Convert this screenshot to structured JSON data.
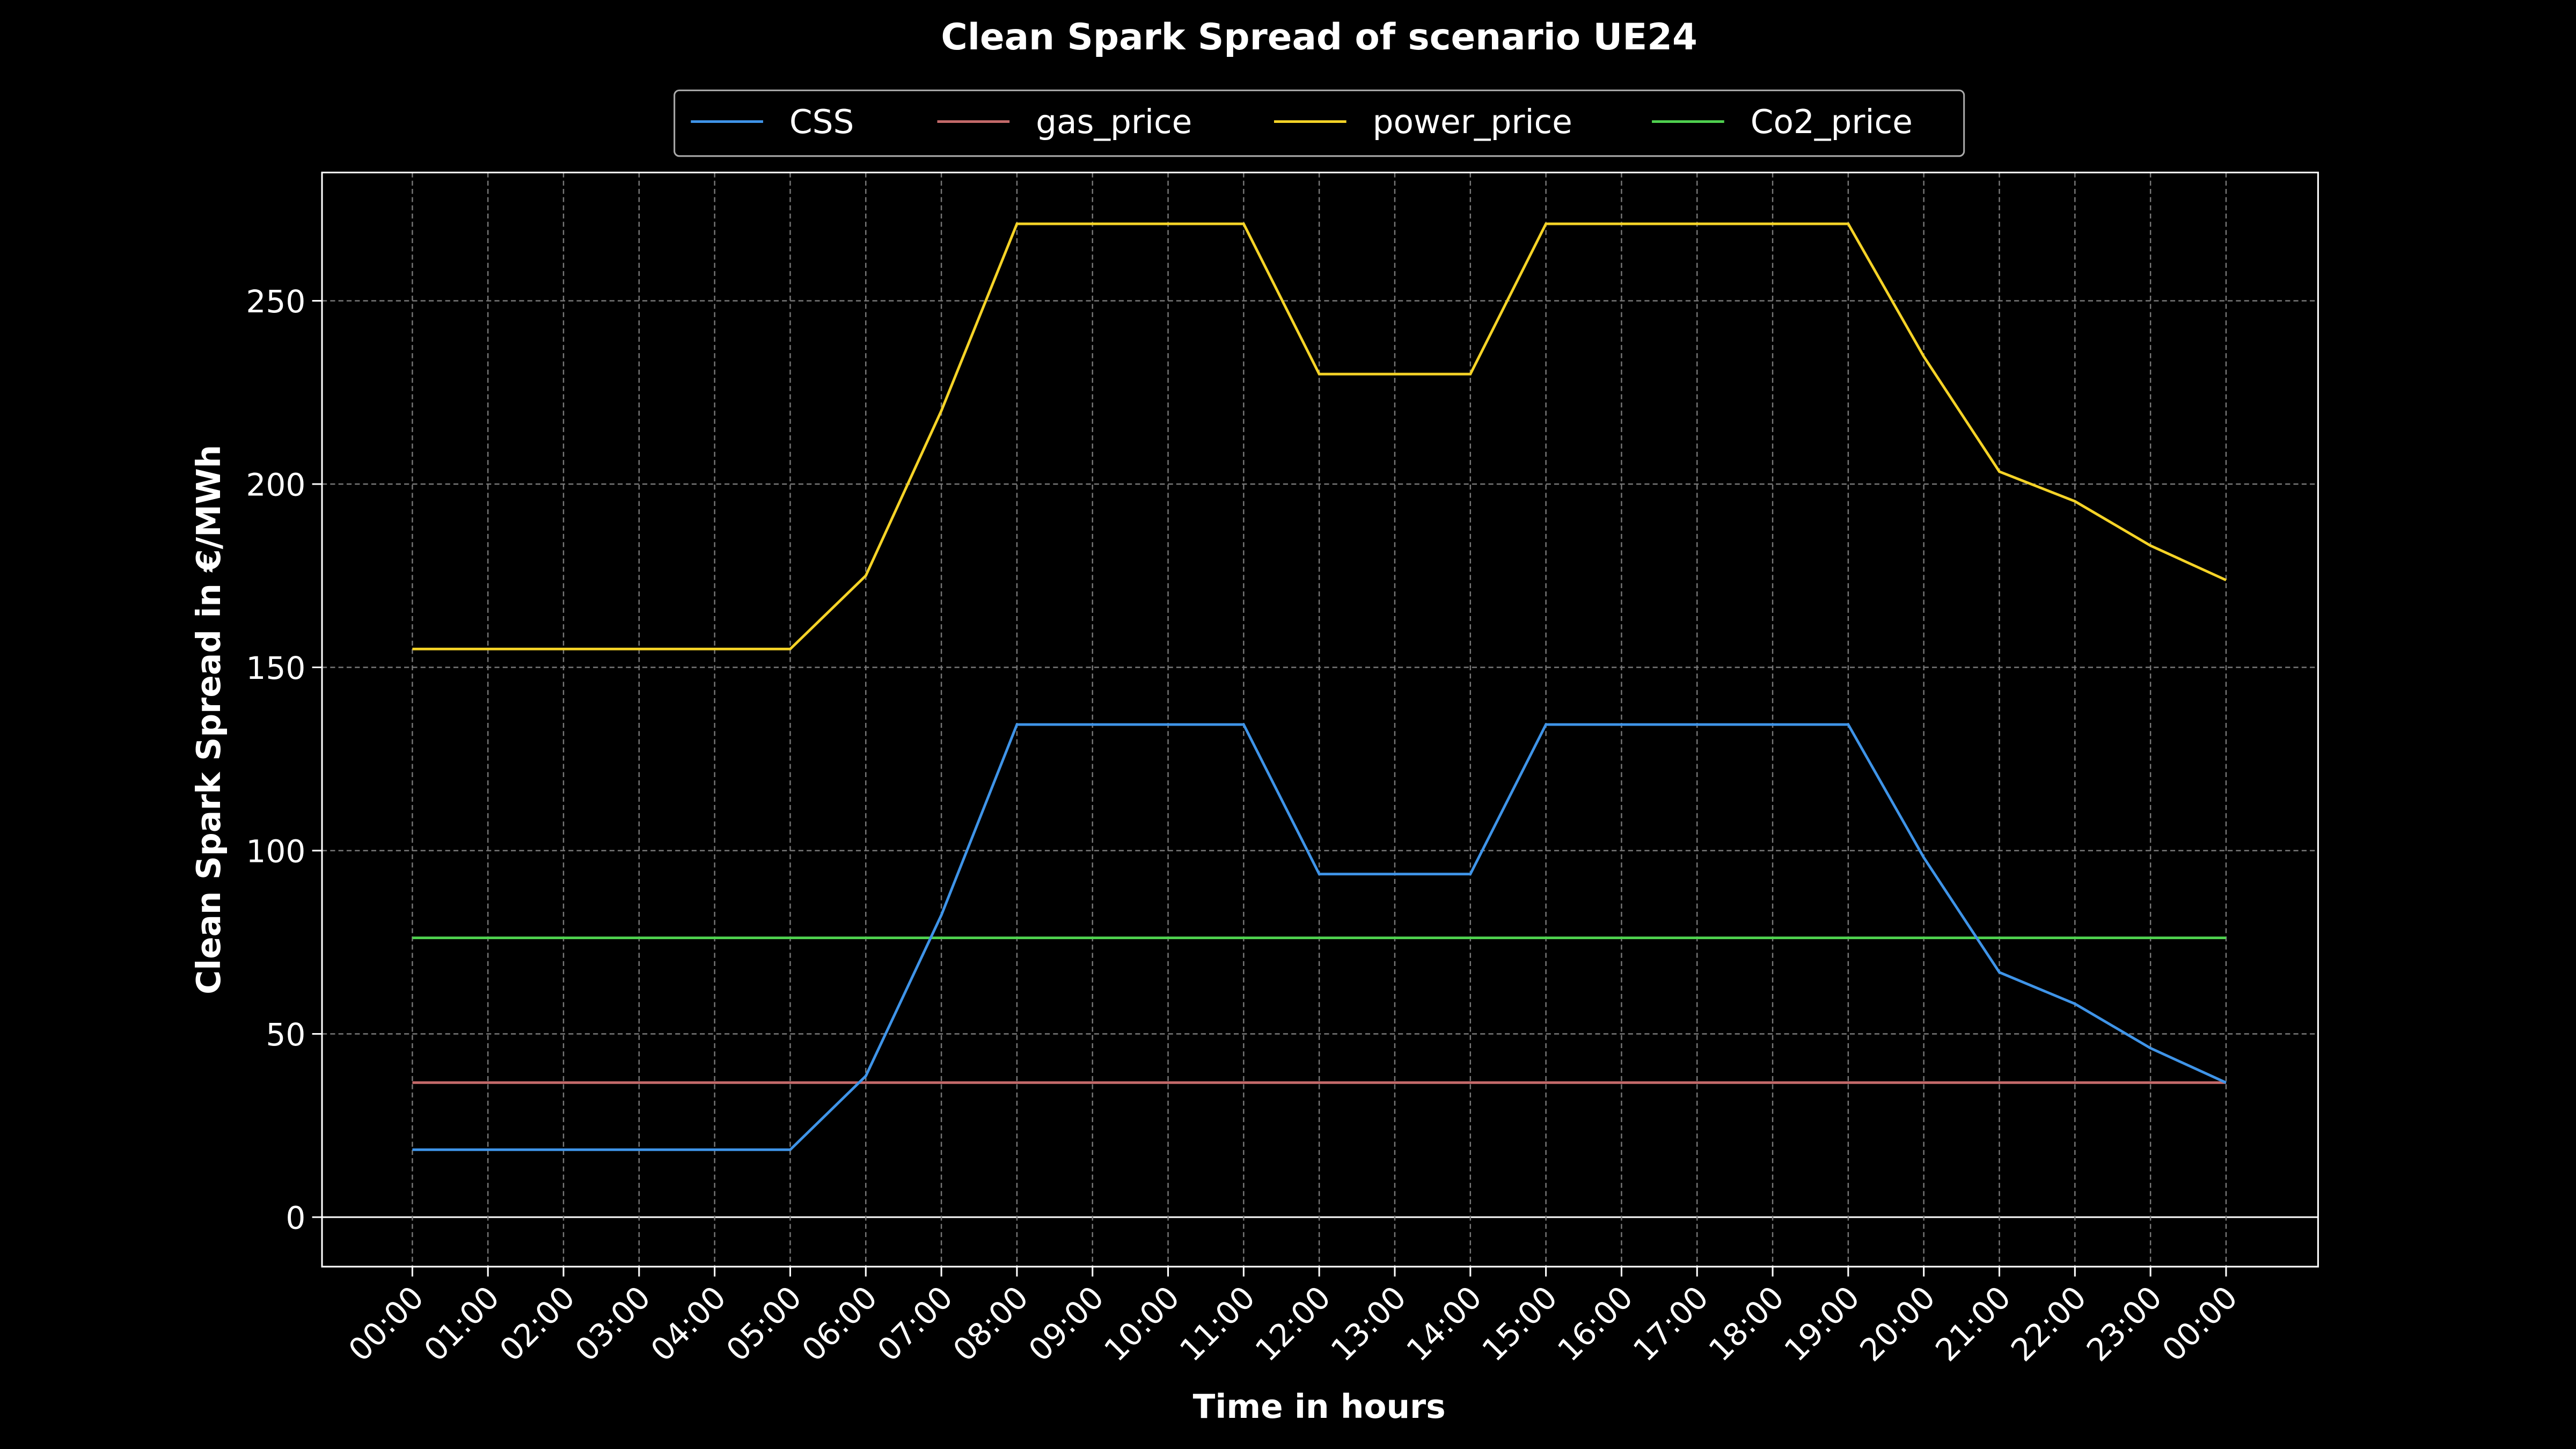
{
  "chart_data": {
    "type": "line",
    "title": "Clean Spark Spread of scenario UE24",
    "x_label": "Time in hours",
    "y_label": "Clean Spark Spread in €/MWh",
    "categories": [
      "00:00",
      "01:00",
      "02:00",
      "03:00",
      "04:00",
      "05:00",
      "06:00",
      "07:00",
      "08:00",
      "09:00",
      "10:00",
      "11:00",
      "12:00",
      "13:00",
      "14:00",
      "15:00",
      "16:00",
      "17:00",
      "18:00",
      "19:00",
      "20:00",
      "21:00",
      "22:00",
      "23:00",
      "00:00"
    ],
    "series": [
      {
        "name": "CSS",
        "color": "#3f94e8",
        "values": [
          18.4,
          18.4,
          18.4,
          18.4,
          18.4,
          18.4,
          38.5,
          82.4,
          134.4,
          134.4,
          134.4,
          134.4,
          93.6,
          93.6,
          93.6,
          134.4,
          134.4,
          134.4,
          134.4,
          134.4,
          98.1,
          66.8,
          58.2,
          46.1,
          36.7
        ]
      },
      {
        "name": "gas_price",
        "color": "#c46a6a",
        "values": [
          36.7,
          36.7,
          36.7,
          36.7,
          36.7,
          36.7,
          36.7,
          36.7,
          36.7,
          36.7,
          36.7,
          36.7,
          36.7,
          36.7,
          36.7,
          36.7,
          36.7,
          36.7,
          36.7,
          36.7,
          36.7,
          36.7,
          36.7,
          36.7,
          36.7
        ]
      },
      {
        "name": "power_price",
        "color": "#f5d327",
        "values": [
          155,
          155,
          155,
          155,
          155,
          155,
          175,
          220,
          271,
          271,
          271,
          271,
          230,
          230,
          230,
          271,
          271,
          271,
          271,
          271,
          234.8,
          203.4,
          195.3,
          183.2,
          173.8
        ]
      },
      {
        "name": "Co2_price",
        "color": "#4fd14f",
        "values": [
          76.2,
          76.2,
          76.2,
          76.2,
          76.2,
          76.2,
          76.2,
          76.2,
          76.2,
          76.2,
          76.2,
          76.2,
          76.2,
          76.2,
          76.2,
          76.2,
          76.2,
          76.2,
          76.2,
          76.2,
          76.2,
          76.2,
          76.2,
          76.2,
          76.2
        ]
      }
    ],
    "ylim": [
      -13.5,
      285
    ],
    "yticks": [
      0,
      50,
      100,
      150,
      200,
      250
    ],
    "grid": true,
    "legend": "top"
  }
}
